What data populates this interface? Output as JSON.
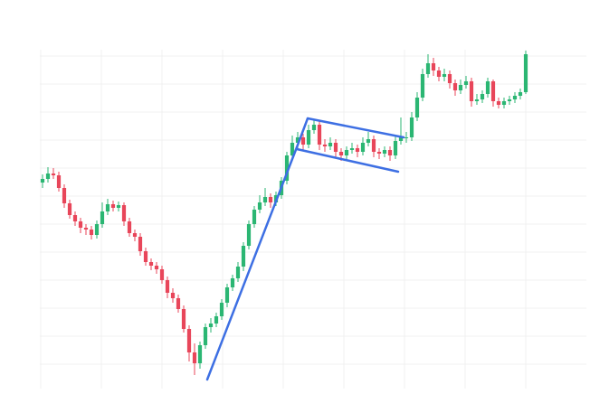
{
  "chart_data": {
    "type": "candlestick",
    "up_color": "#2bb673",
    "down_color": "#e8465a",
    "ylim": [
      0,
      380
    ],
    "open": [
      228,
      232,
      238,
      236,
      222,
      205,
      192,
      185,
      178,
      176,
      170,
      182,
      196,
      204,
      200,
      203,
      185,
      172,
      168,
      152,
      140,
      136,
      132,
      120,
      106,
      100,
      88,
      66,
      40,
      28,
      48,
      68,
      72,
      80,
      95,
      112,
      122,
      135,
      158,
      182,
      198,
      206,
      212,
      206,
      214,
      230,
      258,
      272,
      278,
      270,
      286,
      292,
      270,
      268,
      272,
      262,
      258,
      264,
      266,
      262,
      272,
      276,
      262,
      260,
      264,
      258,
      274,
      278,
      278,
      300,
      322,
      348,
      360,
      352,
      345,
      348,
      338,
      330,
      336,
      340,
      318,
      320,
      326,
      340,
      318,
      314,
      318,
      320,
      324,
      328
    ],
    "high": [
      237,
      245,
      244,
      240,
      226,
      209,
      196,
      189,
      182,
      180,
      186,
      206,
      210,
      208,
      207,
      206,
      189,
      176,
      172,
      156,
      144,
      140,
      136,
      124,
      111,
      104,
      92,
      70,
      50,
      52,
      72,
      78,
      84,
      99,
      116,
      126,
      140,
      162,
      186,
      202,
      214,
      222,
      216,
      218,
      234,
      262,
      280,
      284,
      282,
      292,
      298,
      296,
      276,
      278,
      276,
      266,
      268,
      272,
      270,
      278,
      284,
      280,
      266,
      268,
      268,
      280,
      300,
      284,
      306,
      328,
      354,
      370,
      366,
      356,
      354,
      352,
      342,
      342,
      346,
      344,
      326,
      330,
      344,
      342,
      322,
      322,
      324,
      328,
      332,
      374
    ],
    "low": [
      222,
      228,
      232,
      218,
      200,
      188,
      180,
      172,
      170,
      165,
      166,
      178,
      192,
      196,
      196,
      180,
      168,
      163,
      147,
      136,
      131,
      127,
      116,
      100,
      95,
      84,
      62,
      30,
      15,
      22,
      44,
      62,
      68,
      76,
      90,
      108,
      118,
      130,
      154,
      178,
      194,
      202,
      200,
      202,
      210,
      226,
      254,
      266,
      264,
      266,
      282,
      264,
      262,
      264,
      256,
      252,
      254,
      260,
      256,
      258,
      268,
      256,
      254,
      256,
      252,
      254,
      270,
      272,
      274,
      296,
      318,
      344,
      346,
      340,
      340,
      332,
      324,
      326,
      332,
      312,
      314,
      316,
      322,
      312,
      310,
      310,
      314,
      316,
      320,
      326
    ],
    "close": [
      232,
      238,
      236,
      222,
      205,
      192,
      185,
      178,
      176,
      170,
      182,
      196,
      204,
      200,
      203,
      185,
      172,
      168,
      152,
      140,
      136,
      132,
      120,
      106,
      100,
      88,
      66,
      40,
      28,
      48,
      68,
      72,
      80,
      95,
      112,
      122,
      135,
      158,
      182,
      198,
      206,
      212,
      206,
      214,
      230,
      258,
      272,
      278,
      270,
      286,
      292,
      270,
      268,
      272,
      262,
      258,
      264,
      266,
      262,
      272,
      276,
      262,
      260,
      264,
      258,
      274,
      278,
      278,
      300,
      322,
      348,
      360,
      352,
      345,
      348,
      338,
      330,
      336,
      340,
      318,
      320,
      326,
      340,
      318,
      314,
      318,
      320,
      324,
      328,
      370
    ],
    "grid": true
  }
}
